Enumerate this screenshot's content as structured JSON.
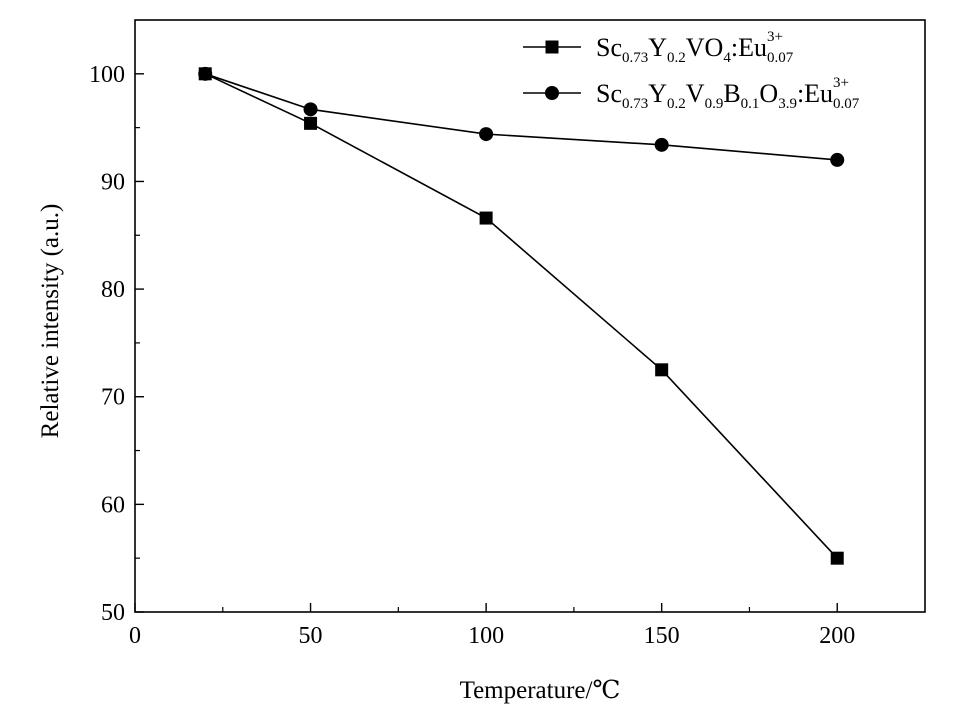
{
  "chart_data": {
    "type": "line",
    "title": "",
    "xlabel": "Temperature/℃",
    "ylabel": "Relative intensity (a.u.)",
    "xlim": [
      0,
      225
    ],
    "ylim": [
      50,
      105
    ],
    "xticks": [
      0,
      50,
      100,
      150,
      200
    ],
    "yticks": [
      50,
      60,
      70,
      80,
      90,
      100
    ],
    "x_tick_labels": [
      "0",
      "50",
      "100",
      "150",
      "200"
    ],
    "y_tick_labels": [
      "50",
      "60",
      "70",
      "80",
      "90",
      "100"
    ],
    "grid": false,
    "legend_position": "top-right",
    "series": [
      {
        "marker": "square",
        "color": "#000000",
        "x": [
          20,
          50,
          100,
          150,
          200
        ],
        "y": [
          100,
          95.4,
          86.6,
          72.5,
          55.0
        ],
        "legend": {
          "parts": [
            {
              "text": "Sc",
              "style": "normal"
            },
            {
              "text": "0.73",
              "style": "sub"
            },
            {
              "text": "Y",
              "style": "normal"
            },
            {
              "text": "0.2",
              "style": "sub"
            },
            {
              "text": "VO",
              "style": "normal"
            },
            {
              "text": "4",
              "style": "sub"
            },
            {
              "text": ":Eu",
              "style": "normal"
            },
            {
              "text": "3+",
              "style": "sup"
            },
            {
              "text": "0.07",
              "style": "sub"
            }
          ]
        }
      },
      {
        "marker": "circle",
        "color": "#000000",
        "x": [
          20,
          50,
          100,
          150,
          200
        ],
        "y": [
          100,
          96.7,
          94.4,
          93.4,
          92.0
        ],
        "legend": {
          "parts": [
            {
              "text": "Sc",
              "style": "normal"
            },
            {
              "text": "0.73",
              "style": "sub"
            },
            {
              "text": "Y",
              "style": "normal"
            },
            {
              "text": "0.2",
              "style": "sub"
            },
            {
              "text": "V",
              "style": "normal"
            },
            {
              "text": "0.9",
              "style": "sub"
            },
            {
              "text": "B",
              "style": "normal"
            },
            {
              "text": "0.1",
              "style": "sub"
            },
            {
              "text": "O",
              "style": "normal"
            },
            {
              "text": "3.9",
              "style": "sub"
            },
            {
              "text": ":Eu",
              "style": "normal"
            },
            {
              "text": "3+",
              "style": "sup"
            },
            {
              "text": "0.07",
              "style": "sub"
            }
          ]
        }
      }
    ]
  }
}
